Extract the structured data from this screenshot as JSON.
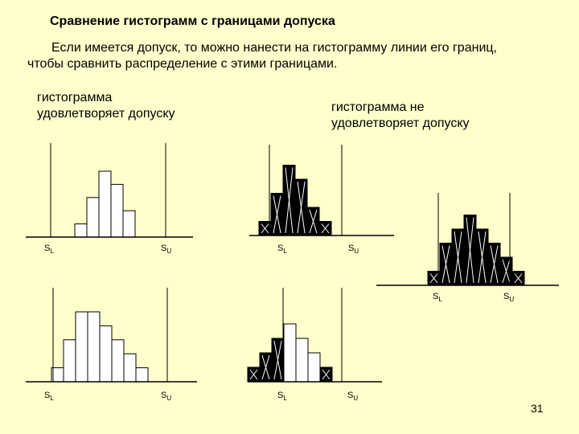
{
  "slide": {
    "title": "Сравнение гистограмм с границами допуска",
    "intro_line1": "Если имеется допуск, то можно нанести на гистограмму линии его границ,",
    "intro_line2": "чтобы сравнить распределение с этими границами.",
    "label_ok_line1": "гистограмма",
    "label_ok_line2": "удовлетворяет допуску",
    "label_bad_line1": "гистограмма не",
    "label_bad_line2": "удовлетворяет допуску",
    "page_number": "31"
  },
  "limits": {
    "lower_main": "S",
    "lower_sub": "L",
    "upper_main": "S",
    "upper_sub": "U"
  },
  "chart_data": [
    {
      "type": "bar",
      "title": "",
      "values": [
        1,
        3,
        5,
        4,
        2
      ],
      "defects": [
        0,
        0,
        0,
        0,
        0
      ]
    },
    {
      "type": "bar",
      "title": "",
      "values": [
        1,
        3,
        5,
        4,
        2,
        1
      ],
      "defects": [
        1,
        1,
        1,
        1,
        1,
        1
      ]
    },
    {
      "type": "bar",
      "title": "",
      "values": [
        1,
        3,
        5,
        5,
        4,
        3,
        2,
        1
      ],
      "defects": [
        0,
        0,
        0,
        0,
        0,
        0,
        0,
        0
      ]
    },
    {
      "type": "bar",
      "title": "",
      "values": [
        1,
        2,
        3,
        4,
        3,
        2,
        1
      ],
      "defects": [
        1,
        1,
        1,
        0,
        0,
        0,
        1
      ]
    },
    {
      "type": "bar",
      "title": "",
      "values": [
        1,
        3,
        4,
        5,
        4,
        3,
        2,
        1
      ],
      "defects": [
        1,
        1,
        1,
        1,
        1,
        1,
        1,
        1
      ]
    }
  ]
}
